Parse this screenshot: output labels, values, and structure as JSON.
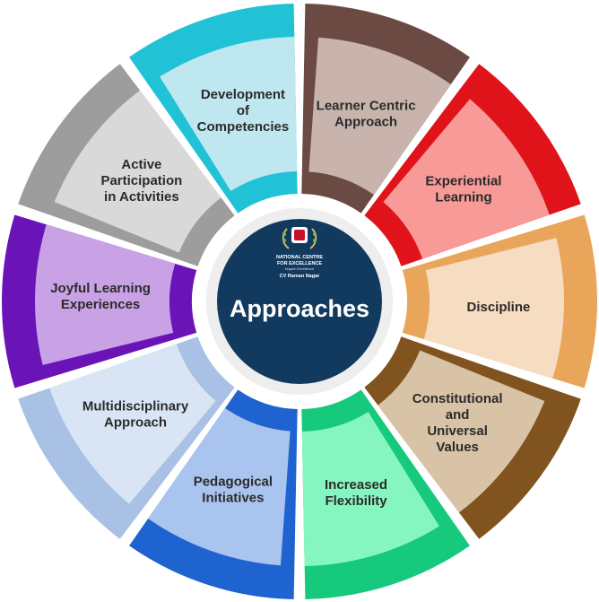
{
  "center": {
    "title": "Approaches",
    "org_line1": "NATIONAL CENTRE",
    "org_line2": "FOR EXCELLENCE",
    "tagline": "Inspire Excellence",
    "place": "CV Raman Nagar",
    "logo_icon": "laurel-emblem-icon",
    "color": "#123a5e"
  },
  "segments": [
    {
      "lines": [
        "Development",
        "of",
        "Competencies"
      ],
      "fill": "#bfe7ef",
      "accent": "#22c2d6"
    },
    {
      "lines": [
        "Learner Centric",
        "Approach"
      ],
      "fill": "#c8b3ad",
      "accent": "#6b4a43"
    },
    {
      "lines": [
        "Experiential",
        "Learning"
      ],
      "fill": "#f79a98",
      "accent": "#e0131b"
    },
    {
      "lines": [
        "Discipline"
      ],
      "fill": "#f6dcc0",
      "accent": "#e9a55a"
    },
    {
      "lines": [
        "Constitutional",
        "and",
        "Universal",
        "Values"
      ],
      "fill": "#d9c3a6",
      "accent": "#80531f"
    },
    {
      "lines": [
        "Increased",
        "Flexibility"
      ],
      "fill": "#86f6c1",
      "accent": "#17c97c"
    },
    {
      "lines": [
        "Pedagogical",
        "Initiatives"
      ],
      "fill": "#a9c4ef",
      "accent": "#1e63cf"
    },
    {
      "lines": [
        "Multidisciplinary",
        "Approach"
      ],
      "fill": "#d9e4f4",
      "accent": "#a8c1e4"
    },
    {
      "lines": [
        "Joyful Learning",
        "Experiences"
      ],
      "fill": "#c9a2e6",
      "accent": "#6a14b8"
    },
    {
      "lines": [
        "Active",
        "Participation",
        "in Activities"
      ],
      "fill": "#d9d9d9",
      "accent": "#9d9d9d"
    }
  ]
}
